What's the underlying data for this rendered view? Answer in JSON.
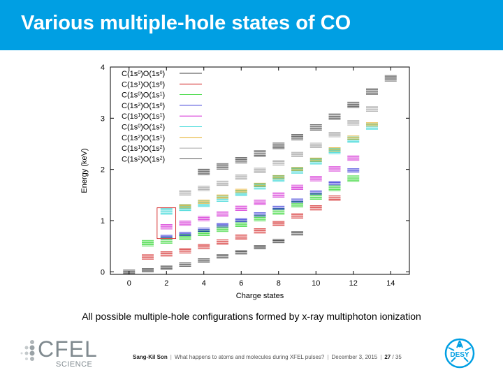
{
  "slide": {
    "title": "Various multiple-hole states of CO",
    "caption": "All possible multiple-hole configurations formed by x-ray multiphoton ionization",
    "footer": {
      "author": "Sang-Kil Son",
      "talk": "What happens to atoms and molecules during XFEL pulses?",
      "date": "December 3, 2015",
      "page": "27",
      "total": "/ 35"
    },
    "logos": {
      "cfel_word": "CFEL",
      "cfel_sub": "SCIENCE",
      "desy": "DESY"
    }
  },
  "chart_data": {
    "type": "scatter",
    "xlabel": "Charge states",
    "ylabel": "Energy (keV)",
    "xlim": [
      -1,
      15
    ],
    "ylim": [
      -0.05,
      4
    ],
    "xticks": [
      0,
      2,
      4,
      6,
      8,
      10,
      12,
      14
    ],
    "yticks": [
      0,
      1,
      2,
      3,
      4
    ],
    "marker": "horizontal tick clusters",
    "legend_position": "top-left",
    "series": [
      {
        "label": [
          "C(1s",
          "0",
          ")O(1s",
          "0",
          ")"
        ],
        "color": "#000000",
        "points": [
          [
            0,
            0.0
          ],
          [
            1,
            0.03
          ],
          [
            2,
            0.08
          ],
          [
            3,
            0.14
          ],
          [
            4,
            0.22
          ],
          [
            5,
            0.3
          ],
          [
            6,
            0.38
          ],
          [
            7,
            0.48
          ],
          [
            8,
            0.6
          ],
          [
            9,
            0.75
          ]
        ]
      },
      {
        "label": [
          "C(1s",
          "1",
          ")O(1s",
          "0",
          ")"
        ],
        "color": "#cc0000",
        "points": [
          [
            1,
            0.29
          ],
          [
            2,
            0.35
          ],
          [
            3,
            0.41
          ],
          [
            4,
            0.49
          ],
          [
            5,
            0.58
          ],
          [
            6,
            0.68
          ],
          [
            7,
            0.8
          ],
          [
            8,
            0.94
          ],
          [
            9,
            1.09
          ],
          [
            10,
            1.25
          ],
          [
            11,
            1.44
          ]
        ]
      },
      {
        "label": [
          "C(1s",
          "0",
          ")O(1s",
          "1",
          ")"
        ],
        "color": "#00cc00",
        "points": [
          [
            1,
            0.56
          ],
          [
            2,
            0.61
          ],
          [
            3,
            0.68
          ],
          [
            4,
            0.76
          ],
          [
            5,
            0.84
          ],
          [
            6,
            0.94
          ],
          [
            7,
            1.05
          ],
          [
            8,
            1.18
          ],
          [
            9,
            1.32
          ],
          [
            10,
            1.47
          ],
          [
            11,
            1.64
          ],
          [
            12,
            1.82
          ]
        ]
      },
      {
        "label": [
          "C(1s",
          "2",
          ")O(1s",
          "0",
          ")"
        ],
        "color": "#0000cc",
        "points": [
          [
            2,
            0.68
          ],
          [
            3,
            0.74
          ],
          [
            4,
            0.82
          ],
          [
            5,
            0.91
          ],
          [
            6,
            1.01
          ],
          [
            7,
            1.12
          ],
          [
            8,
            1.25
          ],
          [
            9,
            1.39
          ],
          [
            10,
            1.55
          ],
          [
            11,
            1.73
          ],
          [
            12,
            1.98
          ]
        ]
      },
      {
        "label": [
          "C(1s",
          "1",
          ")O(1s",
          "1",
          ")"
        ],
        "color": "#cc00cc",
        "points": [
          [
            2,
            0.88
          ],
          [
            3,
            0.95
          ],
          [
            4,
            1.04
          ],
          [
            5,
            1.13
          ],
          [
            6,
            1.24
          ],
          [
            7,
            1.36
          ],
          [
            8,
            1.5
          ],
          [
            9,
            1.65
          ],
          [
            10,
            1.82
          ],
          [
            11,
            2.01
          ],
          [
            12,
            2.22
          ]
        ]
      },
      {
        "label": [
          "C(1s",
          "0",
          ")O(1s",
          "2",
          ")"
        ],
        "color": "#00cccc",
        "points": [
          [
            2,
            1.18
          ],
          [
            3,
            1.25
          ],
          [
            4,
            1.33
          ],
          [
            5,
            1.43
          ],
          [
            6,
            1.54
          ],
          [
            7,
            1.67
          ],
          [
            8,
            1.82
          ],
          [
            9,
            1.98
          ],
          [
            10,
            2.16
          ],
          [
            11,
            2.36
          ],
          [
            12,
            2.58
          ],
          [
            13,
            2.84
          ]
        ]
      },
      {
        "label": [
          "C(1s",
          "2",
          ")O(1s",
          "1",
          ")"
        ],
        "color": "#e0a000",
        "points": [
          [
            3,
            1.28
          ],
          [
            4,
            1.37
          ],
          [
            5,
            1.47
          ],
          [
            6,
            1.58
          ],
          [
            7,
            1.7
          ],
          [
            8,
            1.85
          ],
          [
            9,
            2.01
          ],
          [
            10,
            2.19
          ],
          [
            11,
            2.39
          ],
          [
            12,
            2.62
          ],
          [
            13,
            2.88
          ]
        ]
      },
      {
        "label": [
          "C(1s",
          "1",
          ")O(1s",
          "2",
          ")"
        ],
        "color": "#8a8a8a",
        "points": [
          [
            3,
            1.54
          ],
          [
            4,
            1.63
          ],
          [
            5,
            1.73
          ],
          [
            6,
            1.85
          ],
          [
            7,
            1.98
          ],
          [
            8,
            2.13
          ],
          [
            9,
            2.29
          ],
          [
            10,
            2.47
          ],
          [
            11,
            2.68
          ],
          [
            12,
            2.91
          ],
          [
            13,
            3.18
          ]
        ]
      },
      {
        "label": [
          "C(1s",
          "2",
          ")O(1s",
          "2",
          ")"
        ],
        "color": "#222222",
        "points": [
          [
            4,
            1.95
          ],
          [
            5,
            2.06
          ],
          [
            6,
            2.18
          ],
          [
            7,
            2.31
          ],
          [
            8,
            2.46
          ],
          [
            9,
            2.63
          ],
          [
            10,
            2.82
          ],
          [
            11,
            3.03
          ],
          [
            12,
            3.26
          ],
          [
            13,
            3.52
          ],
          [
            14,
            3.78
          ]
        ]
      }
    ],
    "annotation_box": {
      "x0": 1.5,
      "x1": 2.5,
      "y0": 0.65,
      "y1": 1.25
    }
  }
}
